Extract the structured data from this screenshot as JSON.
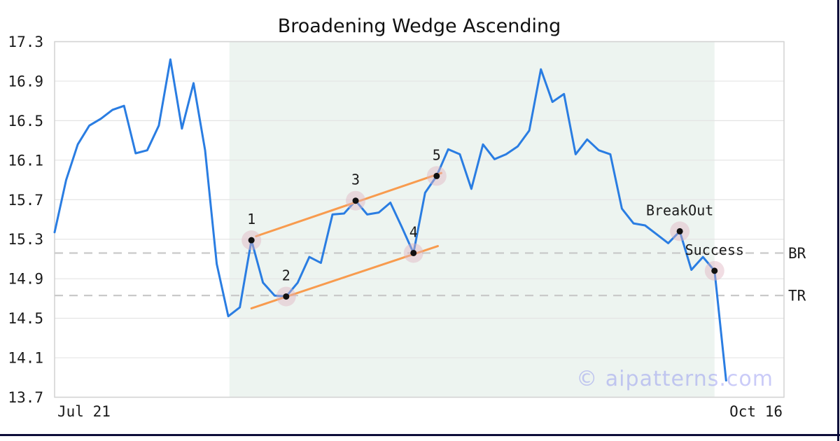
{
  "figure": {
    "watermark": "© aipatterns.com"
  },
  "chart_data": {
    "type": "line",
    "title": "Broadening Wedge Ascending",
    "x_axis": {
      "xlim": [
        0,
        63
      ],
      "ticks": [
        {
          "label": "Jul 21",
          "position": "left"
        },
        {
          "label": "Oct 16",
          "position": "right"
        }
      ]
    },
    "y_axis": {
      "ylim": [
        13.7,
        17.3
      ],
      "ticks": [
        "17.3",
        "16.9",
        "16.5",
        "16.1",
        "15.7",
        "15.3",
        "14.9",
        "14.5",
        "14.1",
        "13.7"
      ],
      "tick_values": [
        17.3,
        16.9,
        16.5,
        16.1,
        15.7,
        15.3,
        14.9,
        14.5,
        14.1,
        13.7
      ]
    },
    "series": [
      {
        "name": "price",
        "values": [
          15.37,
          15.9,
          16.26,
          16.45,
          16.52,
          16.61,
          16.65,
          16.17,
          16.2,
          16.45,
          17.12,
          16.42,
          16.88,
          16.2,
          15.05,
          14.52,
          14.61,
          15.29,
          14.86,
          14.73,
          14.72,
          14.86,
          15.12,
          15.06,
          15.55,
          15.56,
          15.69,
          15.55,
          15.57,
          15.67,
          15.42,
          15.16,
          15.77,
          15.94,
          16.21,
          16.16,
          15.81,
          16.26,
          16.11,
          16.16,
          16.24,
          16.4,
          17.02,
          16.69,
          16.77,
          16.16,
          16.31,
          16.2,
          16.16,
          15.61,
          15.46,
          15.44,
          15.35,
          15.26,
          15.38,
          14.99,
          15.12,
          14.98,
          13.87
        ]
      }
    ],
    "markers": [
      {
        "index": 17,
        "label": "1",
        "value": 15.29
      },
      {
        "index": 20,
        "label": "2",
        "value": 14.72
      },
      {
        "index": 26,
        "label": "3",
        "value": 15.69
      },
      {
        "index": 31,
        "label": "4",
        "value": 15.16
      },
      {
        "index": 33,
        "label": "5",
        "value": 15.94
      },
      {
        "index": 54,
        "label": "BreakOut",
        "value": 15.38
      },
      {
        "index": 57,
        "label": "Success",
        "value": 14.98
      }
    ],
    "trendlines": [
      {
        "name": "upper",
        "x1": 17.4,
        "y1": 15.33,
        "x2": 33.4,
        "y2": 15.97
      },
      {
        "name": "lower",
        "x1": 17.0,
        "y1": 14.6,
        "x2": 33.1,
        "y2": 15.23
      }
    ],
    "levels": [
      {
        "label": "BR",
        "value": 15.16
      },
      {
        "label": "TR",
        "value": 14.73
      }
    ],
    "shade_region": {
      "x1": 15.1,
      "x2": 57.0
    },
    "grid": true,
    "legend": false,
    "colors": {
      "price_line": "#2a7de2",
      "trend_line": "#f89b4e",
      "marker_dot": "#111111",
      "marker_halo": "rgba(225,179,192,0.45)",
      "shade": "#edf4f0",
      "gridline": "#e4e4e4",
      "plot_border": "#d2d2d2",
      "dashed_level": "#c9c9c9",
      "text": "#1a1a1a",
      "watermark": "rgba(128,132,238,0.42)",
      "frame": "#0d0d3a"
    }
  }
}
